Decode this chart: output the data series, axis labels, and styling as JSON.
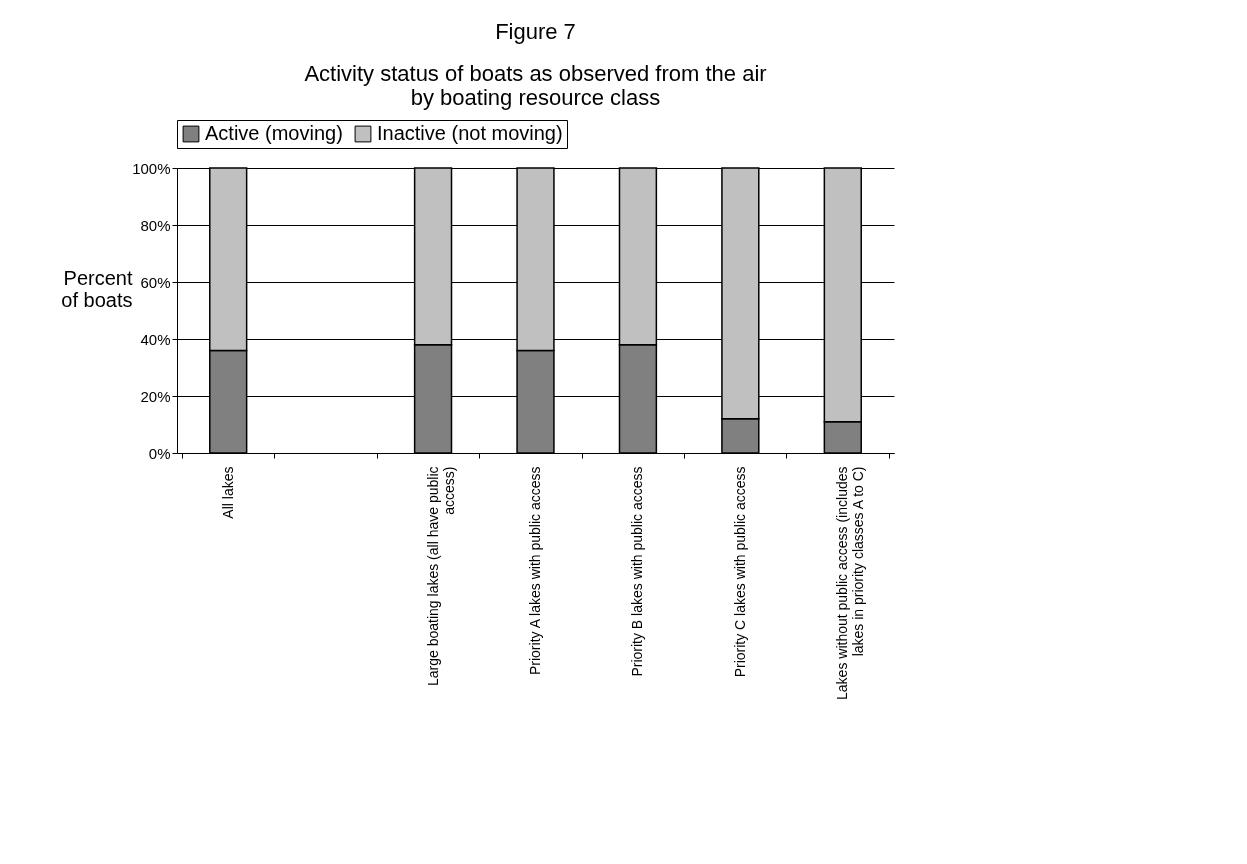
{
  "chart_data": {
    "type": "bar",
    "title": "Figure 7",
    "subtitle": "Activity status of boats as observed from the air by boating resource class",
    "ylabel": "Percent of boats",
    "categories": [
      "All lakes",
      null,
      "Large boating lakes (all have public access)",
      "Priority A lakes with public access",
      "Priority B lakes with public access",
      "Priority C lakes with public access",
      "Lakes without public access (includes lakes in priority classes A to C)"
    ],
    "stacked": true,
    "series": [
      {
        "name": "Active (moving)",
        "color": "#808080",
        "values": [
          36,
          null,
          38,
          36,
          38,
          12,
          11
        ]
      },
      {
        "name": "Inactive (not moving)",
        "color": "#c0c0c0",
        "values": [
          64,
          null,
          62,
          64,
          62,
          88,
          89
        ]
      }
    ],
    "ylim": [
      0,
      100
    ],
    "yticks": [
      {
        "value": 0,
        "label": "0%"
      },
      {
        "value": 20,
        "label": "20%"
      },
      {
        "value": 40,
        "label": "40%"
      },
      {
        "value": 60,
        "label": "60%"
      },
      {
        "value": 80,
        "label": "80%"
      },
      {
        "value": 100,
        "label": "100%"
      }
    ],
    "grid": "y",
    "legend": "top"
  }
}
